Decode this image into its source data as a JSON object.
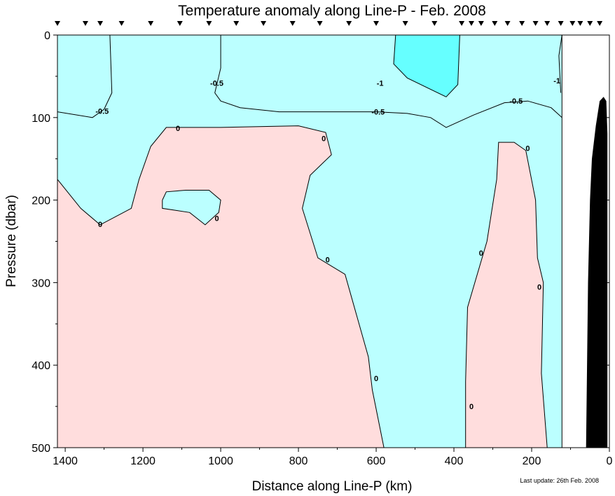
{
  "chart_data": {
    "type": "contour",
    "title": "Temperature anomaly along Line-P - Feb. 2008",
    "xlabel": "Distance along Line-P (km)",
    "ylabel": "Pressure (dbar)",
    "xlim": [
      1420,
      0
    ],
    "ylim": [
      0,
      500
    ],
    "x_ticks": [
      1400,
      1200,
      1000,
      800,
      600,
      400,
      200,
      0
    ],
    "y_ticks": [
      0,
      100,
      200,
      300,
      400,
      500
    ],
    "x_tick_labels": [
      "1400",
      "1200",
      "1000",
      "800",
      "600",
      "400",
      "200",
      "0"
    ],
    "y_tick_labels": [
      "0",
      "100",
      "200",
      "300",
      "400",
      "500"
    ],
    "station_markers_km": [
      1420,
      1348,
      1310,
      1255,
      1180,
      1105,
      1030,
      960,
      890,
      815,
      745,
      670,
      600,
      525,
      450,
      380,
      355,
      330,
      295,
      262,
      225,
      190,
      160,
      125,
      95,
      75,
      50,
      25
    ],
    "data_extent_km": 122,
    "color_levels": [
      {
        "range": "< -1",
        "color": "#66ffff"
      },
      {
        "range": "-1 to 0",
        "color": "#bbffff"
      },
      {
        "range": "0 to 1",
        "color": "#ffdddd"
      }
    ],
    "contours": [
      {
        "level": -1,
        "label": "-1",
        "points": [
          [
            550,
            0
          ],
          [
            555,
            35
          ],
          [
            520,
            52
          ],
          [
            420,
            75
          ],
          [
            390,
            60
          ],
          [
            385,
            0
          ]
        ]
      },
      {
        "level": -1,
        "label": "-1",
        "points": [
          [
            122,
            0
          ],
          [
            130,
            25
          ],
          [
            125,
            70
          ]
        ]
      },
      {
        "level": -0.5,
        "label": "-0.5",
        "points": [
          [
            1420,
            93
          ],
          [
            1330,
            100
          ],
          [
            1300,
            90
          ],
          [
            1280,
            70
          ],
          [
            1285,
            0
          ]
        ]
      },
      {
        "level": -0.5,
        "label": "-0.5",
        "points": [
          [
            1000,
            0
          ],
          [
            1000,
            40
          ],
          [
            1015,
            70
          ],
          [
            1000,
            80
          ],
          [
            950,
            88
          ],
          [
            850,
            93
          ],
          [
            750,
            93
          ],
          [
            600,
            93
          ],
          [
            520,
            95
          ],
          [
            460,
            100
          ],
          [
            420,
            112
          ],
          [
            350,
            97
          ],
          [
            270,
            82
          ],
          [
            210,
            80
          ],
          [
            150,
            88
          ],
          [
            122,
            100
          ]
        ]
      },
      {
        "level": 0,
        "label": "0",
        "points": [
          [
            1420,
            175
          ],
          [
            1360,
            210
          ],
          [
            1310,
            230
          ],
          [
            1230,
            210
          ],
          [
            1210,
            175
          ],
          [
            1180,
            135
          ],
          [
            1140,
            112
          ],
          [
            1000,
            112
          ],
          [
            800,
            110
          ],
          [
            730,
            118
          ],
          [
            715,
            145
          ],
          [
            770,
            170
          ],
          [
            790,
            210
          ],
          [
            750,
            270
          ],
          [
            680,
            290
          ],
          [
            620,
            390
          ],
          [
            610,
            430
          ],
          [
            580,
            500
          ]
        ]
      },
      {
        "level": 0,
        "label": "0",
        "points": [
          [
            1150,
            200
          ],
          [
            1140,
            190
          ],
          [
            1090,
            188
          ],
          [
            1030,
            188
          ],
          [
            1000,
            200
          ],
          [
            1005,
            215
          ],
          [
            1040,
            230
          ],
          [
            1080,
            215
          ],
          [
            1150,
            210
          ],
          [
            1150,
            200
          ]
        ]
      },
      {
        "level": 0,
        "label": "0",
        "points": [
          [
            370,
            500
          ],
          [
            370,
            420
          ],
          [
            365,
            330
          ],
          [
            315,
            250
          ],
          [
            290,
            175
          ],
          [
            285,
            130
          ],
          [
            245,
            130
          ],
          [
            215,
            140
          ],
          [
            190,
            200
          ],
          [
            185,
            270
          ],
          [
            170,
            300
          ],
          [
            175,
            410
          ],
          [
            160,
            500
          ]
        ]
      }
    ],
    "contour_labels": [
      {
        "text": "-0.5",
        "x": 1305,
        "y": 92
      },
      {
        "text": "-0.5",
        "x": 1010,
        "y": 58
      },
      {
        "text": "-1",
        "x": 590,
        "y": 58
      },
      {
        "text": "-0.5",
        "x": 595,
        "y": 93
      },
      {
        "text": "-0.5",
        "x": 240,
        "y": 80
      },
      {
        "text": "-1",
        "x": 135,
        "y": 55
      },
      {
        "text": "0",
        "x": 1110,
        "y": 113
      },
      {
        "text": "0",
        "x": 735,
        "y": 125
      },
      {
        "text": "0",
        "x": 1310,
        "y": 229
      },
      {
        "text": "0",
        "x": 1010,
        "y": 222
      },
      {
        "text": "0",
        "x": 725,
        "y": 272
      },
      {
        "text": "0",
        "x": 600,
        "y": 416
      },
      {
        "text": "0",
        "x": 355,
        "y": 450
      },
      {
        "text": "0",
        "x": 330,
        "y": 264
      },
      {
        "text": "0",
        "x": 210,
        "y": 137
      },
      {
        "text": "0",
        "x": 180,
        "y": 305
      }
    ],
    "bathymetry": {
      "color": "#000000",
      "points": [
        [
          60,
          500
        ],
        [
          55,
          300
        ],
        [
          50,
          200
        ],
        [
          45,
          150
        ],
        [
          35,
          110
        ],
        [
          25,
          80
        ],
        [
          15,
          75
        ],
        [
          8,
          80
        ],
        [
          5,
          120
        ],
        [
          5,
          500
        ]
      ]
    },
    "footnote": "Last update: 26th Feb. 2008"
  }
}
